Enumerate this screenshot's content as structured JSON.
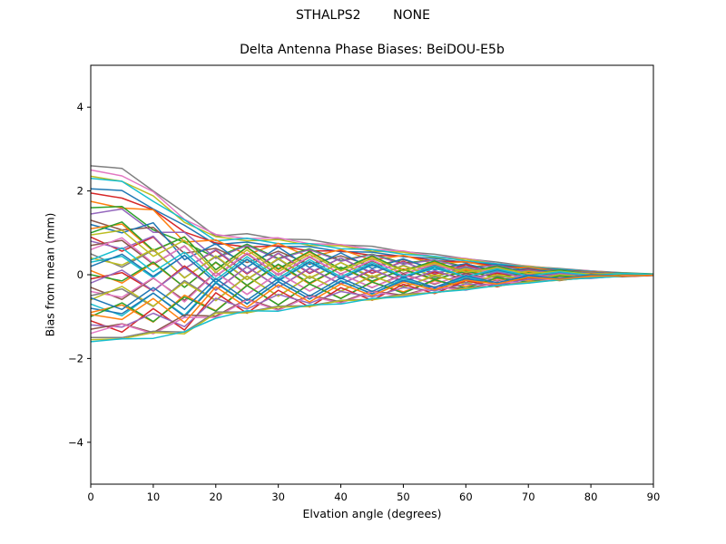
{
  "suptitle": "STHALPS2        NONE",
  "accent_colors": {
    "background": "#ffffff",
    "axes_edge": "#000000",
    "text": "#000000"
  },
  "chart_data": {
    "type": "line",
    "title": "Delta Antenna Phase Biases: BeiDOU-E5b",
    "xlabel": "Elvation angle (degrees)",
    "ylabel": "Bias from mean (mm)",
    "xlim": [
      0,
      90
    ],
    "ylim": [
      -5,
      5
    ],
    "xticks": [
      0,
      10,
      20,
      30,
      40,
      50,
      60,
      70,
      80,
      90
    ],
    "yticks": [
      -4,
      -2,
      0,
      2,
      4
    ],
    "grid": false,
    "legend": "none",
    "line_width": 1.5,
    "x": [
      0,
      5,
      10,
      15,
      20,
      25,
      30,
      35,
      40,
      45,
      50,
      55,
      60,
      65,
      70,
      75,
      80,
      85,
      90
    ],
    "series": [
      {
        "color": "#7f7f7f",
        "values": [
          2.6,
          2.54,
          2.0,
          1.48,
          0.92,
          0.98,
          0.85,
          0.84,
          0.71,
          0.68,
          0.55,
          0.49,
          0.38,
          0.3,
          0.2,
          0.15,
          0.09,
          0.05,
          0.02
        ]
      },
      {
        "color": "#e377c2",
        "values": [
          2.5,
          2.36,
          1.98,
          1.32,
          0.96,
          0.86,
          0.88,
          0.74,
          0.72,
          0.6,
          0.57,
          0.43,
          0.39,
          0.26,
          0.21,
          0.13,
          0.09,
          0.04,
          0.01
        ]
      },
      {
        "color": "#bcbd22",
        "values": [
          2.35,
          2.23,
          1.88,
          1.25,
          0.91,
          0.81,
          0.84,
          0.7,
          0.69,
          0.56,
          0.54,
          0.41,
          0.37,
          0.25,
          0.2,
          0.13,
          0.08,
          0.04,
          0.01
        ]
      },
      {
        "color": "#17becf",
        "values": [
          2.3,
          2.23,
          1.75,
          1.31,
          0.81,
          0.87,
          0.74,
          0.74,
          0.62,
          0.6,
          0.49,
          0.44,
          0.33,
          0.26,
          0.18,
          0.13,
          0.08,
          0.04,
          0.01
        ]
      },
      {
        "color": "#1f77b4",
        "values": [
          2.05,
          2.01,
          1.57,
          1.18,
          0.72,
          0.78,
          0.67,
          0.67,
          0.55,
          0.54,
          0.43,
          0.39,
          0.29,
          0.24,
          0.16,
          0.12,
          0.07,
          0.04,
          0.01
        ]
      },
      {
        "color": "#d62728",
        "values": [
          1.95,
          1.83,
          1.55,
          1.02,
          0.76,
          0.66,
          0.69,
          0.57,
          0.57,
          0.46,
          0.45,
          0.33,
          0.31,
          0.2,
          0.17,
          0.1,
          0.07,
          0.03,
          0.01
        ]
      },
      {
        "color": "#ff7f0e",
        "values": [
          1.75,
          1.59,
          1.55,
          0.78,
          0.83,
          0.48,
          0.75,
          0.42,
          0.6,
          0.35,
          0.46,
          0.26,
          0.31,
          0.16,
          0.17,
          0.08,
          0.07,
          0.03,
          0.01
        ]
      },
      {
        "color": "#2ca02c",
        "values": [
          1.6,
          1.63,
          1.07,
          0.77,
          0.41,
          0.73,
          0.39,
          0.62,
          0.34,
          0.49,
          0.28,
          0.35,
          0.19,
          0.21,
          0.1,
          0.11,
          0.04,
          0.04,
          0.01
        ]
      },
      {
        "color": "#9467bd",
        "values": [
          1.45,
          1.57,
          1.01,
          1.01,
          0.39,
          0.7,
          0.37,
          0.6,
          0.32,
          0.48,
          0.25,
          0.35,
          0.16,
          0.22,
          0.08,
          0.11,
          0.03,
          0.04,
          0.01
        ]
      },
      {
        "color": "#8c564b",
        "values": [
          1.3,
          1.07,
          1.13,
          0.51,
          0.63,
          0.29,
          0.56,
          0.25,
          0.45,
          0.21,
          0.36,
          0.14,
          0.26,
          0.08,
          0.14,
          0.04,
          0.06,
          0.01,
          0.0
        ]
      },
      {
        "color": "#1f77b4",
        "values": [
          1.2,
          1.0,
          1.24,
          0.36,
          0.74,
          0.18,
          0.66,
          0.17,
          0.52,
          0.15,
          0.38,
          0.12,
          0.26,
          0.07,
          0.15,
          0.04,
          0.06,
          0.01,
          0.01
        ]
      },
      {
        "color": "#ff7f0e",
        "values": [
          1.1,
          1.21,
          0.56,
          0.91,
          0.11,
          0.65,
          0.12,
          0.54,
          0.13,
          0.43,
          0.12,
          0.3,
          0.09,
          0.18,
          0.04,
          0.09,
          0.02,
          0.03,
          0.01
        ]
      },
      {
        "color": "#2ca02c",
        "values": [
          1.0,
          1.26,
          0.58,
          0.9,
          0.12,
          0.66,
          0.14,
          0.56,
          0.13,
          0.45,
          0.1,
          0.33,
          0.05,
          0.21,
          0.02,
          0.11,
          0.01,
          0.04,
          0.02
        ]
      },
      {
        "color": "#d62728",
        "values": [
          0.9,
          0.56,
          0.9,
          0.15,
          0.58,
          0.02,
          0.51,
          0.03,
          0.4,
          0.03,
          0.32,
          0.01,
          0.24,
          0.0,
          0.13,
          0.0,
          0.05,
          0.0,
          0.0
        ]
      },
      {
        "color": "#9467bd",
        "values": [
          0.8,
          0.62,
          0.92,
          0.14,
          0.6,
          0.04,
          0.52,
          0.05,
          0.4,
          0.05,
          0.3,
          0.04,
          0.2,
          0.03,
          0.11,
          0.01,
          0.05,
          0.0,
          0.0
        ]
      },
      {
        "color": "#8c564b",
        "values": [
          0.7,
          0.82,
          0.25,
          0.69,
          -0.04,
          0.5,
          -0.01,
          0.42,
          0.02,
          0.33,
          0.03,
          0.23,
          0.03,
          0.14,
          0.01,
          0.07,
          0.0,
          0.02,
          0.0
        ]
      },
      {
        "color": "#e377c2",
        "values": [
          0.6,
          0.88,
          0.27,
          0.68,
          -0.03,
          0.52,
          0.0,
          0.44,
          0.02,
          0.35,
          0.01,
          0.26,
          -0.01,
          0.17,
          -0.01,
          0.08,
          -0.01,
          0.03,
          0.01
        ]
      },
      {
        "color": "#7f7f7f",
        "values": [
          0.5,
          0.18,
          0.59,
          -0.07,
          0.43,
          -0.12,
          0.37,
          -0.09,
          0.29,
          -0.08,
          0.23,
          -0.06,
          0.18,
          -0.05,
          0.1,
          -0.02,
          0.05,
          -0.01,
          -0.01
        ]
      },
      {
        "color": "#bcbd22",
        "values": [
          0.4,
          0.23,
          0.61,
          -0.08,
          0.45,
          -0.11,
          0.39,
          -0.08,
          0.29,
          -0.05,
          0.21,
          -0.03,
          0.14,
          -0.02,
          0.08,
          -0.01,
          0.03,
          0.0,
          0.0
        ]
      },
      {
        "color": "#17becf",
        "values": [
          0.3,
          0.44,
          -0.07,
          0.47,
          -0.19,
          0.36,
          -0.15,
          0.29,
          -0.1,
          0.23,
          -0.05,
          0.15,
          -0.04,
          0.09,
          -0.03,
          0.05,
          -0.01,
          0.02,
          0.0
        ]
      },
      {
        "color": "#1f77b4",
        "values": [
          0.2,
          0.49,
          -0.04,
          0.46,
          -0.18,
          0.37,
          -0.13,
          0.31,
          -0.09,
          0.25,
          -0.08,
          0.19,
          -0.07,
          0.12,
          -0.04,
          0.06,
          -0.02,
          0.02,
          0.01
        ]
      },
      {
        "color": "#ff7f0e",
        "values": [
          0.1,
          -0.2,
          0.28,
          -0.3,
          0.29,
          -0.26,
          0.23,
          -0.22,
          0.18,
          -0.18,
          0.14,
          -0.13,
          0.12,
          -0.09,
          0.07,
          -0.04,
          0.03,
          -0.02,
          -0.01
        ]
      },
      {
        "color": "#2ca02c",
        "values": [
          0.0,
          -0.15,
          0.3,
          -0.3,
          0.3,
          -0.25,
          0.25,
          -0.2,
          0.18,
          -0.15,
          0.12,
          -0.1,
          0.08,
          -0.06,
          0.05,
          -0.03,
          0.02,
          -0.01,
          0.0
        ]
      },
      {
        "color": "#d62728",
        "values": [
          -0.1,
          0.05,
          -0.39,
          0.21,
          -0.36,
          0.19,
          -0.3,
          0.15,
          -0.22,
          0.11,
          -0.15,
          0.07,
          -0.1,
          0.04,
          -0.06,
          0.02,
          -0.03,
          0.01,
          0.0
        ]
      },
      {
        "color": "#9467bd",
        "values": [
          -0.2,
          0.11,
          -0.38,
          0.17,
          -0.37,
          0.19,
          -0.3,
          0.16,
          -0.23,
          0.13,
          -0.18,
          0.1,
          -0.14,
          0.07,
          -0.08,
          0.03,
          -0.04,
          0.02,
          0.01
        ]
      },
      {
        "color": "#8c564b",
        "values": [
          -0.3,
          -0.59,
          -0.08,
          -0.61,
          0.06,
          -0.47,
          0.04,
          -0.39,
          0.02,
          -0.31,
          0.02,
          -0.23,
          0.03,
          -0.15,
          0.02,
          -0.07,
          0.02,
          -0.03,
          -0.01
        ]
      },
      {
        "color": "#e377c2",
        "values": [
          -0.4,
          -0.54,
          -0.07,
          -0.65,
          0.05,
          -0.47,
          0.04,
          -0.39,
          0.01,
          -0.3,
          -0.01,
          -0.21,
          -0.01,
          -0.13,
          0.0,
          -0.06,
          0.0,
          -0.02,
          0.0
        ]
      },
      {
        "color": "#7f7f7f",
        "values": [
          -0.5,
          -0.34,
          -0.76,
          -0.14,
          -0.61,
          -0.03,
          -0.51,
          -0.04,
          -0.39,
          -0.04,
          -0.28,
          -0.04,
          -0.19,
          -0.03,
          -0.11,
          -0.01,
          -0.05,
          0.0,
          0.0
        ]
      },
      {
        "color": "#bcbd22",
        "values": [
          -0.6,
          -0.28,
          -0.75,
          -0.18,
          -0.62,
          -0.04,
          -0.51,
          -0.03,
          -0.4,
          -0.02,
          -0.31,
          -0.01,
          -0.23,
          0.0,
          -0.13,
          0.0,
          -0.06,
          0.01,
          0.01
        ]
      },
      {
        "color": "#17becf",
        "values": [
          -0.7,
          -0.98,
          -0.44,
          -0.97,
          -0.18,
          -0.69,
          -0.16,
          -0.58,
          -0.14,
          -0.46,
          -0.1,
          -0.34,
          -0.05,
          -0.22,
          -0.02,
          -0.11,
          -0.01,
          -0.04,
          -0.02
        ]
      },
      {
        "color": "#1f77b4",
        "values": [
          -0.8,
          -0.93,
          -0.44,
          -1.0,
          -0.2,
          -0.7,
          -0.17,
          -0.58,
          -0.16,
          -0.45,
          -0.14,
          -0.32,
          -0.1,
          -0.2,
          -0.05,
          -0.09,
          -0.02,
          -0.03,
          -0.01
        ]
      },
      {
        "color": "#ff7f0e",
        "values": [
          -0.9,
          -0.72,
          -1.13,
          -0.49,
          -0.86,
          -0.25,
          -0.72,
          -0.22,
          -0.56,
          -0.18,
          -0.41,
          -0.14,
          -0.28,
          -0.09,
          -0.16,
          -0.04,
          -0.07,
          -0.01,
          -0.01
        ]
      },
      {
        "color": "#2ca02c",
        "values": [
          -1.0,
          -0.67,
          -1.12,
          -0.53,
          -0.87,
          -0.26,
          -0.72,
          -0.22,
          -0.57,
          -0.17,
          -0.44,
          -0.12,
          -0.32,
          -0.07,
          -0.18,
          -0.03,
          -0.08,
          -0.01,
          0.0
        ]
      },
      {
        "color": "#d62728",
        "values": [
          -1.1,
          -1.37,
          -0.81,
          -1.32,
          -0.43,
          -0.92,
          -0.37,
          -0.77,
          -0.31,
          -0.61,
          -0.23,
          -0.45,
          -0.14,
          -0.29,
          -0.07,
          -0.14,
          -0.03,
          -0.05,
          -0.02
        ]
      },
      {
        "color": "#9467bd",
        "values": [
          -1.2,
          -1.25,
          -0.92,
          -1.24,
          -0.56,
          -0.82,
          -0.47,
          -0.68,
          -0.4,
          -0.53,
          -0.31,
          -0.38,
          -0.22,
          -0.24,
          -0.11,
          -0.11,
          -0.05,
          -0.04,
          -0.01
        ]
      },
      {
        "color": "#8c564b",
        "values": [
          -1.3,
          -1.17,
          -1.38,
          -0.96,
          -0.99,
          -0.58,
          -0.83,
          -0.49,
          -0.65,
          -0.39,
          -0.49,
          -0.29,
          -0.33,
          -0.19,
          -0.19,
          -0.09,
          -0.08,
          -0.03,
          -0.01
        ]
      },
      {
        "color": "#e377c2",
        "values": [
          -1.4,
          -1.18,
          -1.41,
          -1.02,
          -1.02,
          -0.6,
          -0.85,
          -0.51,
          -0.68,
          -0.4,
          -0.52,
          -0.29,
          -0.37,
          -0.18,
          -0.2,
          -0.08,
          -0.09,
          -0.02,
          -0.01
        ]
      },
      {
        "color": "#7f7f7f",
        "values": [
          -1.5,
          -1.5,
          -1.35,
          -1.37,
          -0.89,
          -0.89,
          -0.75,
          -0.74,
          -0.61,
          -0.59,
          -0.46,
          -0.43,
          -0.32,
          -0.27,
          -0.17,
          -0.13,
          -0.07,
          -0.04,
          -0.01
        ]
      },
      {
        "color": "#bcbd22",
        "values": [
          -1.55,
          -1.53,
          -1.38,
          -1.41,
          -0.92,
          -0.91,
          -0.77,
          -0.76,
          -0.62,
          -0.6,
          -0.48,
          -0.43,
          -0.33,
          -0.27,
          -0.18,
          -0.13,
          -0.07,
          -0.04,
          -0.01
        ]
      },
      {
        "color": "#17becf",
        "values": [
          -1.6,
          -1.53,
          -1.52,
          -1.36,
          -1.04,
          -0.86,
          -0.87,
          -0.72,
          -0.7,
          -0.57,
          -0.53,
          -0.42,
          -0.36,
          -0.26,
          -0.2,
          -0.12,
          -0.08,
          -0.04,
          -0.01
        ]
      },
      {
        "color": "#bcbd22",
        "values": [
          0.95,
          1.06,
          0.44,
          0.82,
          0.05,
          0.59,
          0.07,
          0.49,
          0.09,
          0.39,
          0.09,
          0.27,
          0.06,
          0.16,
          0.03,
          0.08,
          0.01,
          0.03,
          0.01
        ]
      },
      {
        "color": "#17becf",
        "values": [
          0.35,
          0.64,
          0.07,
          0.54,
          -0.12,
          0.43,
          -0.08,
          0.36,
          -0.05,
          0.29,
          -0.04,
          0.21,
          -0.05,
          0.14,
          -0.03,
          0.07,
          -0.02,
          0.03,
          0.01
        ]
      },
      {
        "color": "#1f77b4",
        "values": [
          -0.55,
          -0.83,
          -0.31,
          -0.83,
          -0.09,
          -0.61,
          -0.09,
          -0.51,
          -0.08,
          -0.4,
          -0.06,
          -0.3,
          -0.02,
          -0.19,
          -0.01,
          -0.09,
          0.0,
          -0.03,
          -0.01
        ]
      },
      {
        "color": "#ff7f0e",
        "values": [
          -0.95,
          -1.07,
          -0.57,
          -1.14,
          -0.29,
          -0.78,
          -0.24,
          -0.65,
          -0.22,
          -0.5,
          -0.18,
          -0.36,
          -0.13,
          -0.22,
          -0.06,
          -0.11,
          -0.03,
          -0.03,
          -0.01
        ]
      }
    ]
  }
}
